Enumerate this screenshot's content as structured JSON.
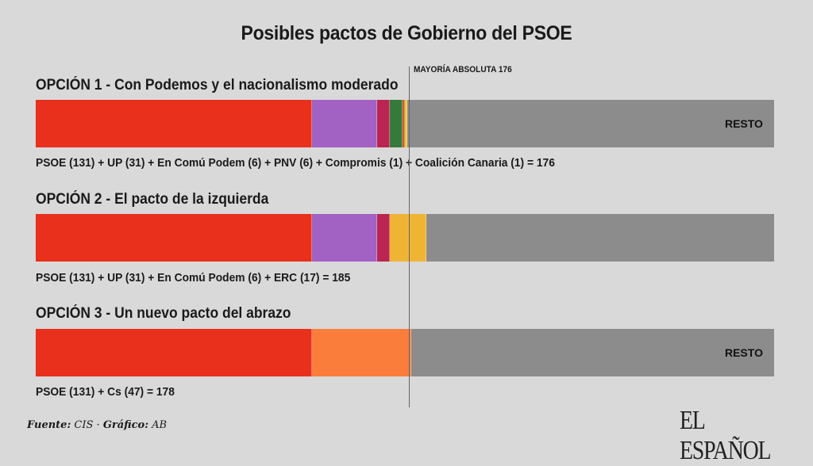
{
  "title": "Posibles pactos de Gobierno del PSOE",
  "majority": {
    "label": "MAYORÍA ABSOLUTA 176",
    "seats": 176
  },
  "total_seats": 350,
  "resto_label": "RESTO",
  "options": [
    {
      "title": "OPCIÓN 1 - Con Podemos y el nacionalismo moderado",
      "formula": "PSOE (131) + UP (31) + En Comú Podem (6) + PNV (6) + Compromis (1) + Coalición Canaria (1) = 176",
      "show_resto": true
    },
    {
      "title": "OPCIÓN 2 - El pacto de la izquierda",
      "formula": "PSOE (131) + UP (31) + En Comú Podem (6) + ERC (17) = 185",
      "show_resto": false
    },
    {
      "title": "OPCIÓN 3 - Un nuevo pacto del abrazo",
      "formula": "PSOE (131) + Cs (47) = 178",
      "show_resto": true
    }
  ],
  "source": {
    "fuente_label": "Fuente:",
    "fuente": "CIS",
    "grafico_label": "Gráfico:",
    "grafico": "AB",
    "sep": "·"
  },
  "logo": "EL ESPAÑOL",
  "chart_data": {
    "type": "bar",
    "orientation": "horizontal-stacked",
    "title": "Posibles pactos de Gobierno del PSOE",
    "annotation": "MAYORÍA ABSOLUTA 176",
    "xlim": [
      0,
      350
    ],
    "categories": [
      "OPCIÓN 1",
      "OPCIÓN 2",
      "OPCIÓN 3"
    ],
    "bars": [
      {
        "category": "OPCIÓN 1",
        "segments": [
          {
            "name": "PSOE",
            "value": 131,
            "color": "#e8301c"
          },
          {
            "name": "UP",
            "value": 31,
            "color": "#a262c4"
          },
          {
            "name": "En Comú Podem",
            "value": 6,
            "color": "#bb2551"
          },
          {
            "name": "PNV",
            "value": 6,
            "color": "#357a3a"
          },
          {
            "name": "Compromis",
            "value": 1,
            "color": "#d4562a"
          },
          {
            "name": "Coalición Canaria",
            "value": 1,
            "color": "#f4c430"
          },
          {
            "name": "RESTO",
            "value": 174,
            "color": "#8c8c8c"
          }
        ],
        "total": 176
      },
      {
        "category": "OPCIÓN 2",
        "segments": [
          {
            "name": "PSOE",
            "value": 131,
            "color": "#e8301c"
          },
          {
            "name": "UP",
            "value": 31,
            "color": "#a262c4"
          },
          {
            "name": "En Comú Podem",
            "value": 6,
            "color": "#bb2551"
          },
          {
            "name": "ERC",
            "value": 17,
            "color": "#f0b435"
          },
          {
            "name": "RESTO",
            "value": 165,
            "color": "#8c8c8c"
          }
        ],
        "total": 185
      },
      {
        "category": "OPCIÓN 3",
        "segments": [
          {
            "name": "PSOE",
            "value": 131,
            "color": "#e8301c"
          },
          {
            "name": "Cs",
            "value": 47,
            "color": "#fa7d3c"
          },
          {
            "name": "RESTO",
            "value": 172,
            "color": "#8c8c8c"
          }
        ],
        "total": 178
      }
    ]
  }
}
